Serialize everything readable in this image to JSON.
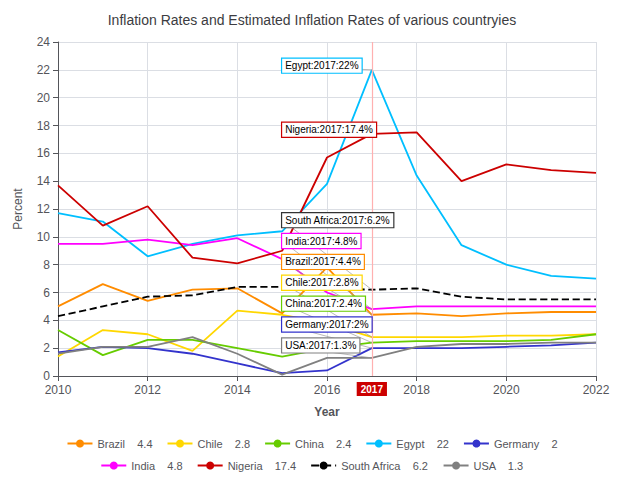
{
  "chart_data": {
    "type": "line",
    "title": "Inflation Rates and Estimated Inflation Rates of various countryies",
    "xlabel": "Year",
    "ylabel": "Percent",
    "x": [
      2010,
      2011,
      2012,
      2013,
      2014,
      2015,
      2016,
      2017,
      2018,
      2019,
      2020,
      2021,
      2022
    ],
    "xlim": [
      2010,
      2022
    ],
    "xticks": [
      2010,
      2012,
      2014,
      2016,
      2018,
      2020,
      2022
    ],
    "ylim": [
      0,
      24
    ],
    "yticks": [
      0,
      2,
      4,
      6,
      8,
      10,
      12,
      14,
      16,
      18,
      20,
      22,
      24
    ],
    "grid": true,
    "legend": "bottom",
    "series": [
      {
        "name": "Brazil    4.4",
        "color": "#FF8C00",
        "line_style": "solid",
        "values": [
          5.0,
          6.6,
          5.4,
          6.2,
          6.3,
          4.5,
          7.8,
          4.4,
          4.5,
          4.3,
          4.5,
          4.6,
          4.6
        ]
      },
      {
        "name": "Chile    2.8",
        "color": "#FFD700",
        "line_style": "solid",
        "values": [
          1.4,
          3.3,
          3.0,
          1.8,
          4.7,
          4.4,
          3.8,
          2.8,
          2.8,
          2.8,
          2.9,
          2.9,
          3.0
        ]
      },
      {
        "name": "China    2.4",
        "color": "#66CC00",
        "line_style": "solid",
        "values": [
          3.3,
          1.5,
          2.6,
          2.6,
          2.0,
          1.4,
          2.0,
          2.4,
          2.5,
          2.5,
          2.5,
          2.6,
          3.0
        ]
      },
      {
        "name": "Egypt    22",
        "color": "#00BFFF",
        "line_style": "solid",
        "values": [
          11.7,
          11.1,
          8.6,
          9.5,
          10.1,
          10.4,
          13.8,
          22.0,
          14.4,
          9.4,
          8.0,
          7.2,
          7.0
        ]
      },
      {
        "name": "Germany    2",
        "color": "#3333CC",
        "line_style": "solid",
        "values": [
          1.7,
          2.1,
          2.0,
          1.6,
          0.9,
          0.2,
          0.4,
          2.0,
          2.0,
          2.0,
          2.1,
          2.2,
          2.4
        ]
      },
      {
        "name": "India    4.8",
        "color": "#FF00FF",
        "line_style": "solid",
        "values": [
          9.5,
          9.5,
          9.8,
          9.4,
          9.9,
          8.4,
          6.0,
          4.8,
          5.0,
          5.0,
          5.0,
          5.0,
          5.0
        ]
      },
      {
        "name": "Nigeria    17.4",
        "color": "#CC0000",
        "line_style": "solid",
        "values": [
          13.7,
          10.8,
          12.2,
          8.5,
          8.1,
          9.0,
          15.7,
          17.4,
          17.5,
          14.0,
          15.2,
          14.8,
          14.6
        ]
      },
      {
        "name": "South Africa    6.2",
        "color": "#000000",
        "line_style": "dashed",
        "values": [
          4.3,
          5.0,
          5.7,
          5.8,
          6.4,
          6.4,
          6.3,
          6.2,
          6.3,
          5.7,
          5.5,
          5.5,
          5.5
        ]
      },
      {
        "name": "USA    1.3",
        "color": "#808080",
        "line_style": "solid",
        "values": [
          1.6,
          2.1,
          2.1,
          2.8,
          1.6,
          0.1,
          1.3,
          1.3,
          2.1,
          2.3,
          2.3,
          2.4,
          2.4
        ]
      }
    ],
    "vline": {
      "x": 2017,
      "label": "2017",
      "color": "#CC0000"
    },
    "annotations": [
      {
        "text": "Egypt:2017:22%",
        "x": 2015.0,
        "y": 22.3,
        "point": [
          2017,
          22.0
        ],
        "color": "#00BFFF"
      },
      {
        "text": "Nigeria:2017:17.4%",
        "x": 2015.0,
        "y": 17.7,
        "point": [
          2017,
          17.4
        ],
        "color": "#CC0000"
      },
      {
        "text": "South Africa:2017:6.2%",
        "x": 2015.0,
        "y": 11.2,
        "point": [
          2017,
          6.2
        ],
        "color": "#333333"
      },
      {
        "text": "India:2017:4.8%",
        "x": 2015.0,
        "y": 9.7,
        "point": [
          2017,
          4.8
        ],
        "color": "#FF00FF"
      },
      {
        "text": "Brazil:2017:4.4%",
        "x": 2015.0,
        "y": 8.2,
        "point": [
          2017,
          4.4
        ],
        "color": "#FF8C00"
      },
      {
        "text": "Chile:2017:2.8%",
        "x": 2015.0,
        "y": 6.7,
        "point": [
          2017,
          2.8
        ],
        "color": "#FFD700"
      },
      {
        "text": "China:2017:2.4%",
        "x": 2015.0,
        "y": 5.2,
        "point": [
          2017,
          2.4
        ],
        "color": "#66CC00"
      },
      {
        "text": "Germany:2017:2%",
        "x": 2015.0,
        "y": 3.7,
        "point": [
          2017,
          2.0
        ],
        "color": "#3333CC"
      },
      {
        "text": "USA:2017:1.3%",
        "x": 2015.0,
        "y": 2.2,
        "point": [
          2017,
          1.3
        ],
        "color": "#808080"
      }
    ]
  }
}
